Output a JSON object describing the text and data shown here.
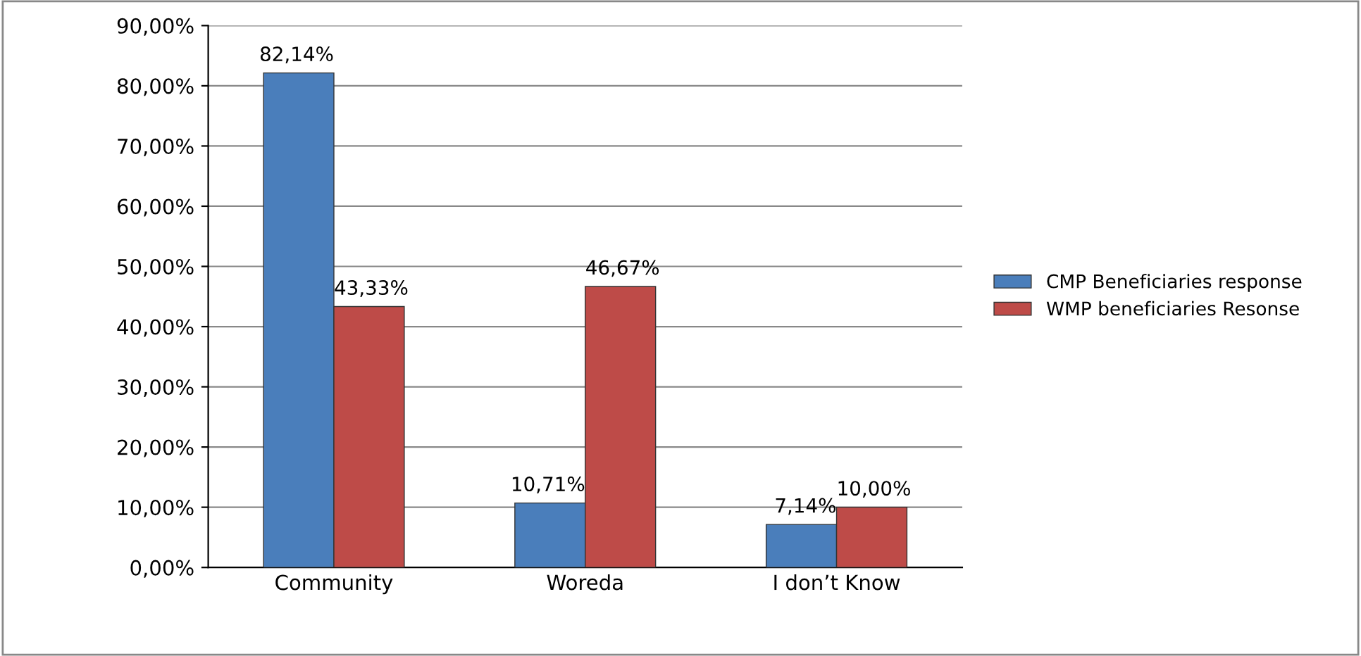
{
  "chart_data": {
    "type": "bar",
    "categories": [
      "Community",
      "Woreda",
      "I don’t Know"
    ],
    "series": [
      {
        "name": "CMP Beneficiaries response",
        "color": "#4a7ebb",
        "values": [
          82.14,
          10.71,
          7.14
        ],
        "value_labels": [
          "82,14%",
          "10,71%",
          "7,14%"
        ]
      },
      {
        "name": "WMP beneficiaries Resonse",
        "color": "#be4b48",
        "values": [
          43.33,
          46.67,
          10.0
        ],
        "value_labels": [
          "43,33%",
          "46,67%",
          "10,00%"
        ]
      }
    ],
    "ylim": [
      0,
      90
    ],
    "yticks": [
      {
        "value": 0,
        "label": "0,00%"
      },
      {
        "value": 10,
        "label": "10,00%"
      },
      {
        "value": 20,
        "label": "20,00%"
      },
      {
        "value": 30,
        "label": "30,00%"
      },
      {
        "value": 40,
        "label": "40,00%"
      },
      {
        "value": 50,
        "label": "50,00%"
      },
      {
        "value": 60,
        "label": "60,00%"
      },
      {
        "value": 70,
        "label": "70,00%"
      },
      {
        "value": 80,
        "label": "80,00%"
      },
      {
        "value": 90,
        "label": "90,00%"
      }
    ],
    "grid": "y",
    "legend": "right"
  }
}
